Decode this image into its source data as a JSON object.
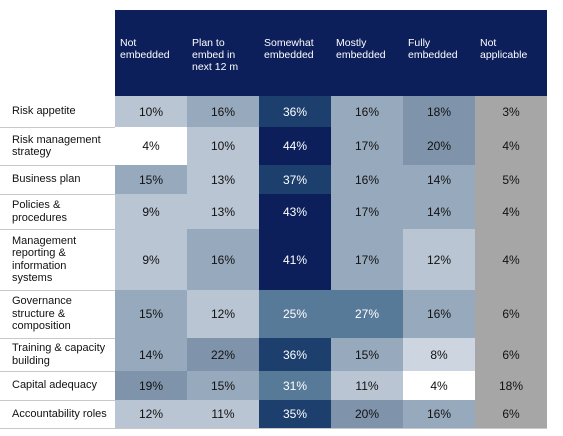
{
  "chart_data": {
    "type": "heatmap",
    "title": "",
    "columns": [
      "Not\nembedded",
      "Plan to\nembed  in\nnext 12 m",
      "Somewhat\nembedded",
      "Mostly\nembedded",
      "Fully\nembedded",
      "Not\napplicable"
    ],
    "rows": [
      "Risk appetite",
      "Risk management\nstrategy",
      "Business plan",
      "Policies &\nprocedures",
      "Management\nreporting &\ninformation\nsystems",
      "Governance\nstructure &\ncomposition",
      "Training & capacity\nbuilding",
      "Capital adequacy",
      "Accountability roles"
    ],
    "values": [
      [
        10,
        16,
        36,
        16,
        18,
        3
      ],
      [
        4,
        10,
        44,
        17,
        20,
        4
      ],
      [
        15,
        13,
        37,
        16,
        14,
        5
      ],
      [
        9,
        13,
        43,
        17,
        14,
        4
      ],
      [
        9,
        16,
        41,
        17,
        12,
        4
      ],
      [
        15,
        12,
        25,
        27,
        16,
        6
      ],
      [
        14,
        22,
        36,
        15,
        8,
        6
      ],
      [
        19,
        15,
        31,
        11,
        4,
        18
      ],
      [
        12,
        11,
        35,
        20,
        16,
        6
      ]
    ],
    "value_suffix": "%",
    "header_color": "#0c1f5b",
    "not_applicable_color": "#a6a6a6"
  }
}
